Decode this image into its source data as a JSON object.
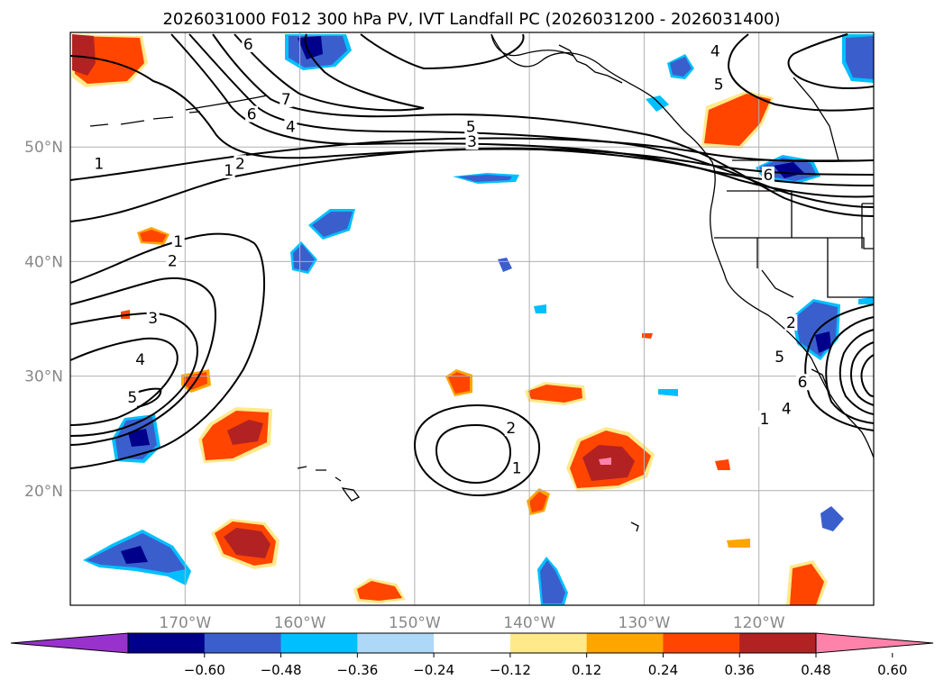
{
  "chart_data": {
    "type": "map-contour",
    "title": "2026031000 F012 300 hPa PV, IVT Landfall PC (2026031200 - 2026031400)",
    "lon_range": [
      -180,
      -110
    ],
    "lat_range": [
      10,
      60
    ],
    "lat_ticks": [
      {
        "lat": 50,
        "label": "50°N"
      },
      {
        "lat": 40,
        "label": "40°N"
      },
      {
        "lat": 30,
        "label": "30°N"
      },
      {
        "lat": 20,
        "label": "20°N"
      }
    ],
    "lon_ticks": [
      {
        "lon": -170,
        "label": "170°W"
      },
      {
        "lon": -160,
        "label": "160°W"
      },
      {
        "lon": -150,
        "label": "150°W"
      },
      {
        "lon": -140,
        "label": "140°W"
      },
      {
        "lon": -130,
        "label": "130°W"
      },
      {
        "lon": -120,
        "label": "120°W"
      }
    ],
    "colorbar": {
      "bounds": [
        -0.6,
        -0.48,
        -0.36,
        -0.24,
        -0.12,
        0.12,
        0.24,
        0.36,
        0.48,
        0.6
      ],
      "labels": [
        "−0.60",
        "−0.48",
        "−0.36",
        "−0.24",
        "−0.12",
        "0.12",
        "0.24",
        "0.36",
        "0.48",
        "0.60"
      ],
      "colors": [
        "#9932cc",
        "#00008b",
        "#3a5fcd",
        "#00bfff",
        "#add8f7",
        "#ffffff",
        "#ffe98a",
        "#ffa500",
        "#ff4500",
        "#b22222",
        "#ff82ab"
      ]
    },
    "contour_labels": [
      {
        "text": "1",
        "lon": -177.5,
        "lat": 48.5
      },
      {
        "text": "2",
        "lon": -165.2,
        "lat": 48.5
      },
      {
        "text": "1",
        "lon": -166.2,
        "lat": 47.9
      },
      {
        "text": "6",
        "lon": -164.2,
        "lat": 52.8
      },
      {
        "text": "7",
        "lon": -161.2,
        "lat": 54.1
      },
      {
        "text": "4",
        "lon": -160.8,
        "lat": 51.7
      },
      {
        "text": "5",
        "lon": -145.1,
        "lat": 51.7
      },
      {
        "text": "3",
        "lon": -145.0,
        "lat": 50.4
      },
      {
        "text": "5",
        "lon": -123.5,
        "lat": 55.4
      },
      {
        "text": "4",
        "lon": -123.8,
        "lat": 58.3
      },
      {
        "text": "6",
        "lon": -119.2,
        "lat": 47.5
      },
      {
        "text": "6",
        "lon": -164.5,
        "lat": 58.9
      },
      {
        "text": "1",
        "lon": -170.6,
        "lat": 41.7
      },
      {
        "text": "2",
        "lon": -171.1,
        "lat": 40.0
      },
      {
        "text": "3",
        "lon": -172.8,
        "lat": 35.0
      },
      {
        "text": "4",
        "lon": -173.9,
        "lat": 31.4
      },
      {
        "text": "5",
        "lon": -174.6,
        "lat": 28.1
      },
      {
        "text": "2",
        "lon": -141.6,
        "lat": 25.4
      },
      {
        "text": "1",
        "lon": -141.1,
        "lat": 21.9
      },
      {
        "text": "2",
        "lon": -117.2,
        "lat": 34.6
      },
      {
        "text": "5",
        "lon": -118.2,
        "lat": 31.6
      },
      {
        "text": "6",
        "lon": -116.2,
        "lat": 29.4
      },
      {
        "text": "4",
        "lon": -117.6,
        "lat": 27.1
      },
      {
        "text": "1",
        "lon": -119.5,
        "lat": 26.2
      }
    ]
  }
}
